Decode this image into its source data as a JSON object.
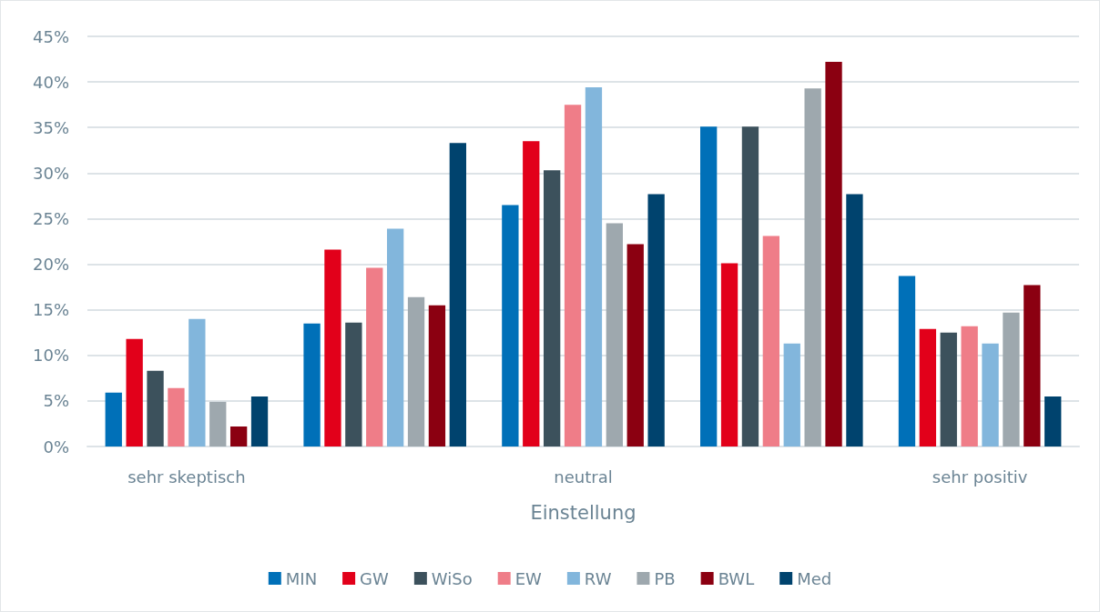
{
  "chart_data": {
    "type": "bar",
    "xlabel": "Einstellung",
    "categories": [
      "sehr skeptisch",
      null,
      "neutral",
      null,
      "sehr positiv"
    ],
    "series": [
      {
        "name": "MIN",
        "color": "#0070b8",
        "values": [
          5.9,
          13.5,
          26.5,
          35.1,
          18.7
        ]
      },
      {
        "name": "GW",
        "color": "#e2001a",
        "values": [
          11.8,
          21.6,
          33.5,
          20.1,
          12.9
        ]
      },
      {
        "name": "WiSo",
        "color": "#3c515c",
        "values": [
          8.3,
          13.6,
          30.3,
          35.1,
          12.5
        ]
      },
      {
        "name": "EW",
        "color": "#ef7d88",
        "values": [
          6.4,
          19.6,
          37.5,
          23.1,
          13.2
        ]
      },
      {
        "name": "RW",
        "color": "#82b6dc",
        "values": [
          14.0,
          23.9,
          39.4,
          11.3,
          11.3
        ]
      },
      {
        "name": "PB",
        "color": "#9ea8ae",
        "values": [
          4.9,
          16.4,
          24.5,
          39.3,
          14.7
        ]
      },
      {
        "name": "BWL",
        "color": "#8b0011",
        "values": [
          2.2,
          15.5,
          22.2,
          42.2,
          17.7
        ]
      },
      {
        "name": "Med",
        "color": "#00436e",
        "values": [
          5.5,
          33.3,
          27.7,
          27.7,
          5.5
        ]
      }
    ],
    "ylim": [
      0,
      45
    ],
    "yticks": [
      {
        "value": 0,
        "label": "0%"
      },
      {
        "value": 5,
        "label": "5%"
      },
      {
        "value": 10,
        "label": "10%"
      },
      {
        "value": 15,
        "label": "15%"
      },
      {
        "value": 20,
        "label": "20%"
      },
      {
        "value": 25,
        "label": "25%"
      },
      {
        "value": 30,
        "label": "30%"
      },
      {
        "value": 35,
        "label": "35%"
      },
      {
        "value": 40,
        "label": "40%"
      },
      {
        "value": 45,
        "label": "45%"
      }
    ],
    "grid": "y",
    "legend": "bottom"
  }
}
